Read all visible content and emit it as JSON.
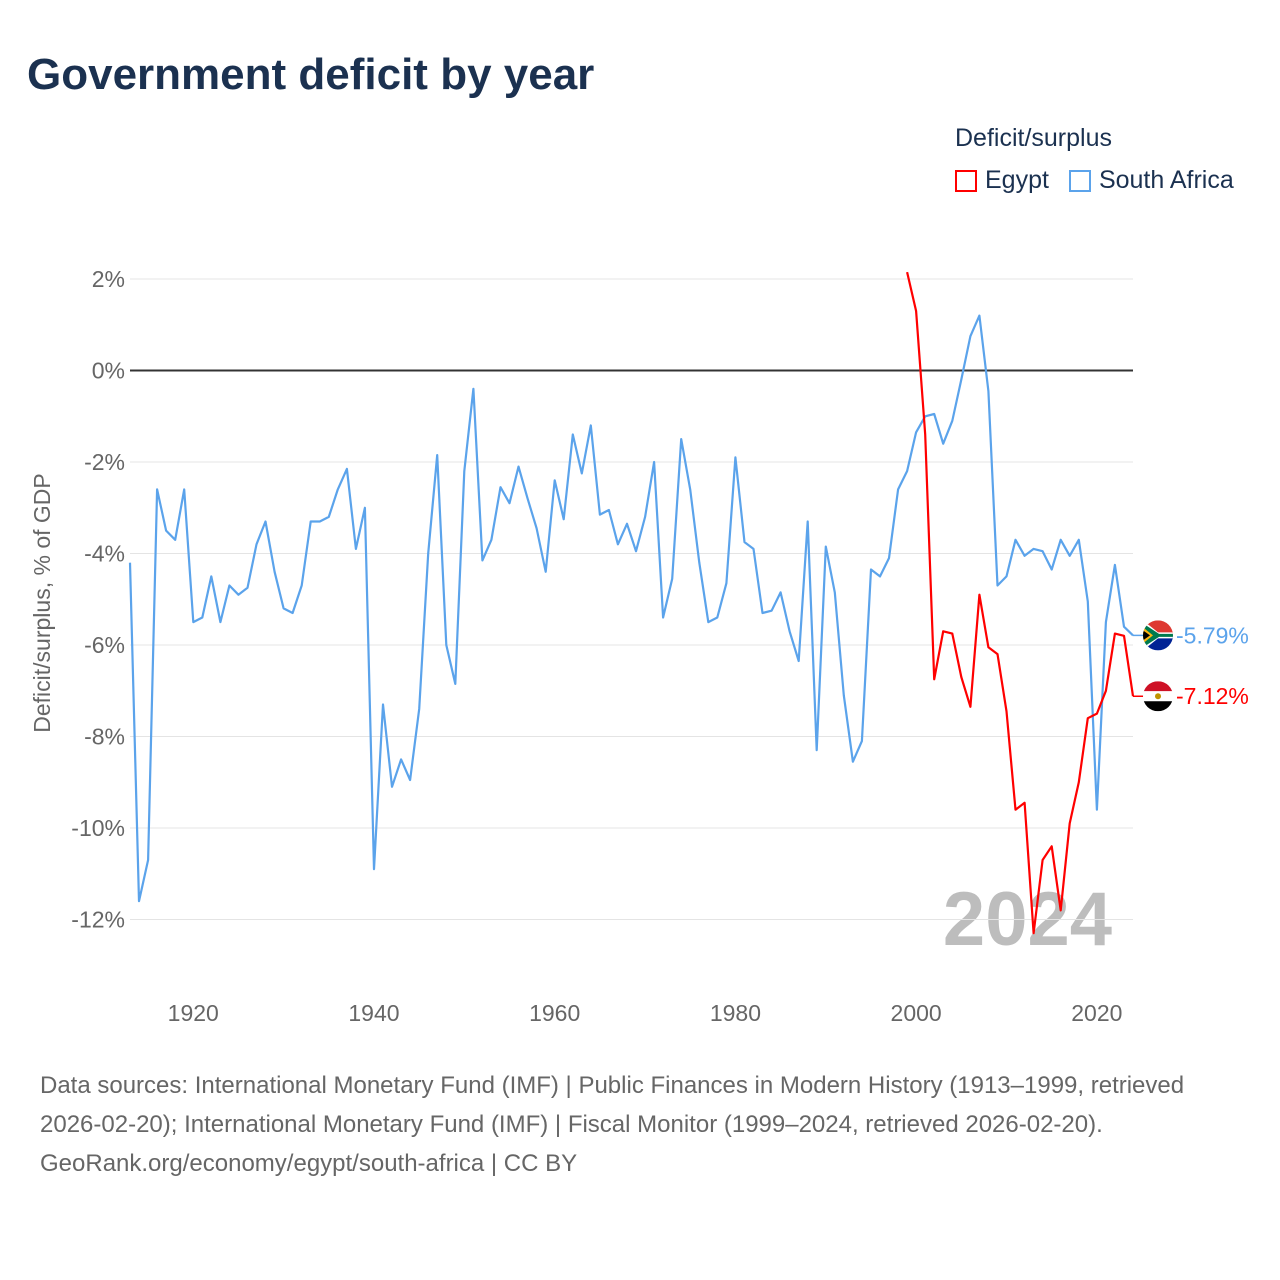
{
  "title": "Government deficit by year",
  "legend": {
    "title": "Deficit/surplus",
    "items": [
      {
        "name": "Egypt",
        "color": "#ff0000"
      },
      {
        "name": "South Africa",
        "color": "#5ba3eb"
      }
    ]
  },
  "footer": {
    "sources": "Data sources: International Monetary Fund (IMF) | Public Finances in Modern History (1913–1999, retrieved 2026-02-20); International Monetary Fund (IMF) | Fiscal Monitor (1999–2024, retrieved 2026-02-20).",
    "credit": "GeoRank.org/economy/egypt/south-africa | CC BY"
  },
  "chart_data": {
    "type": "line",
    "title": "Government deficit by year",
    "xlabel": "",
    "ylabel": "Deficit/surplus, % of GDP",
    "xlim": [
      1913,
      2024
    ],
    "ylim": [
      -13,
      2.5
    ],
    "yticks": [
      2,
      0,
      -2,
      -4,
      -6,
      -8,
      -10,
      -12
    ],
    "ytick_labels": [
      "2%",
      "0%",
      "-2%",
      "-4%",
      "-6%",
      "-8%",
      "-10%",
      "-12%"
    ],
    "xticks": [
      1920,
      1940,
      1960,
      1980,
      2000,
      2020
    ],
    "xtick_labels": [
      "1920",
      "1940",
      "1960",
      "1980",
      "2000",
      "2020"
    ],
    "year_watermark": "2024",
    "grid": true,
    "legend_position": "top-right",
    "series": [
      {
        "name": "South Africa",
        "color": "#5ba3eb",
        "start_year": 1913,
        "end_label": "-5.79%",
        "values": [
          -4.2,
          -11.6,
          -10.7,
          -2.6,
          -3.5,
          -3.7,
          -2.6,
          -5.5,
          -5.4,
          -4.5,
          -5.5,
          -4.7,
          -4.9,
          -4.75,
          -3.8,
          -3.3,
          -4.4,
          -5.2,
          -5.3,
          -4.7,
          -3.3,
          -3.3,
          -3.2,
          -2.6,
          -2.15,
          -3.9,
          -3.0,
          -10.9,
          -7.3,
          -9.1,
          -8.5,
          -8.95,
          -7.4,
          -4.0,
          -1.85,
          -6.0,
          -6.85,
          -2.2,
          -0.4,
          -4.15,
          -3.7,
          -2.55,
          -2.9,
          -2.1,
          -2.8,
          -3.45,
          -4.4,
          -2.4,
          -3.25,
          -1.4,
          -2.25,
          -1.2,
          -3.15,
          -3.05,
          -3.8,
          -3.35,
          -3.95,
          -3.2,
          -2.0,
          -5.4,
          -4.55,
          -1.5,
          -2.6,
          -4.2,
          -5.5,
          -5.4,
          -4.65,
          -1.9,
          -3.75,
          -3.9,
          -5.3,
          -5.25,
          -4.85,
          -5.7,
          -6.35,
          -3.3,
          -8.3,
          -3.85,
          -4.85,
          -7.1,
          -8.55,
          -8.1,
          -4.35,
          -4.5,
          -4.1,
          -2.6,
          -2.2,
          -1.35,
          -1.0,
          -0.95,
          -1.6,
          -1.1,
          -0.2,
          0.75,
          1.2,
          -0.45,
          -4.7,
          -4.5,
          -3.7,
          -4.05,
          -3.9,
          -3.95,
          -4.35,
          -3.7,
          -4.05,
          -3.7,
          -5.05,
          -9.6,
          -5.5,
          -4.25,
          -5.6,
          -5.79
        ]
      },
      {
        "name": "Egypt",
        "color": "#ff0000",
        "start_year": 1999,
        "end_label": "-7.12%",
        "values": [
          2.15,
          1.3,
          -1.4,
          -6.75,
          -5.7,
          -5.75,
          -6.7,
          -7.35,
          -4.9,
          -6.05,
          -6.2,
          -7.45,
          -9.6,
          -9.45,
          -12.3,
          -10.7,
          -10.4,
          -11.8,
          -9.9,
          -9.0,
          -7.6,
          -7.5,
          -7.0,
          -5.75,
          -5.8,
          -7.12
        ]
      }
    ]
  }
}
